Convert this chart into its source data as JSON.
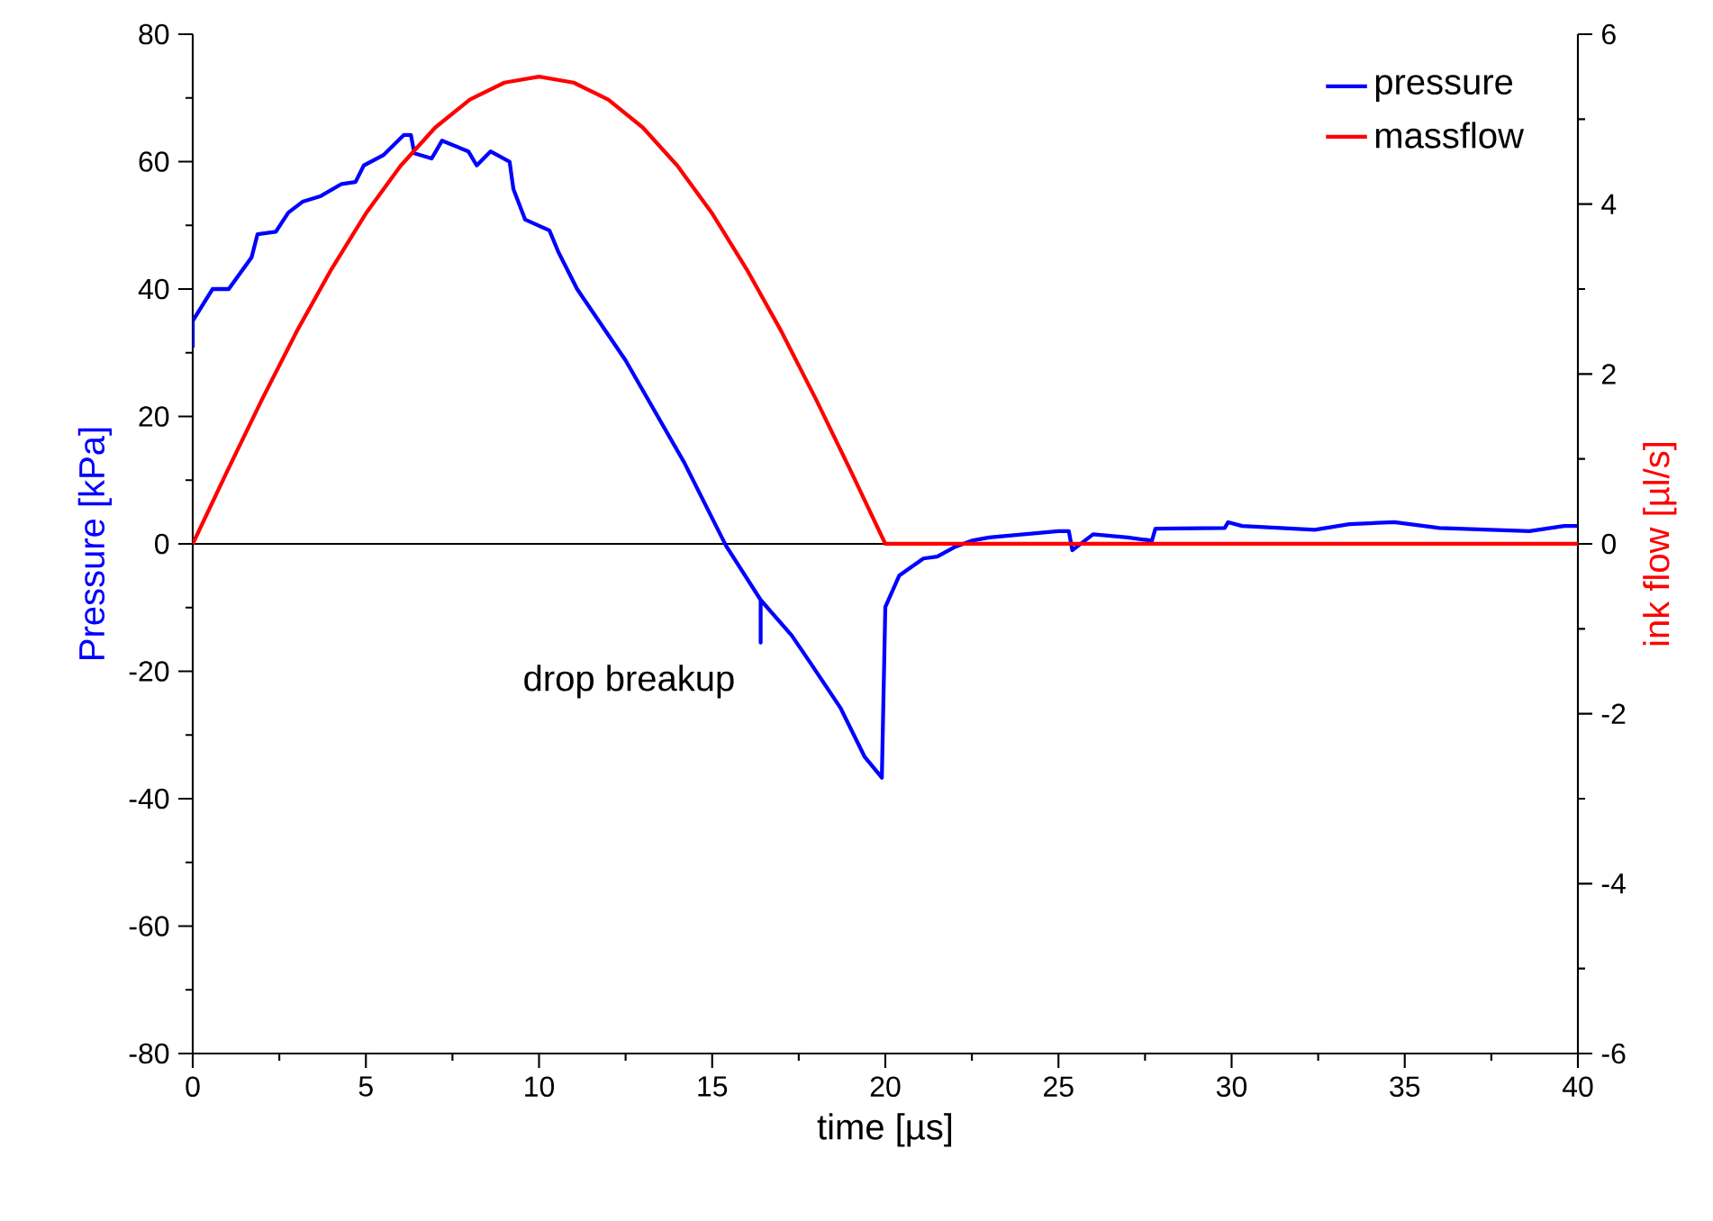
{
  "chart_data": {
    "type": "line",
    "xlabel": "time [µs]",
    "ylabel": "Pressure [kPa]",
    "y2label": "ink flow [µl/s]",
    "xlim": [
      0,
      40
    ],
    "xticks": [
      0,
      5,
      10,
      15,
      20,
      25,
      30,
      35,
      40
    ],
    "ylim": [
      -80,
      80
    ],
    "yticks": [
      -80,
      -60,
      -40,
      -20,
      0,
      20,
      40,
      60,
      80
    ],
    "y2lim": [
      -6,
      6
    ],
    "y2ticks": [
      -6,
      -4,
      -2,
      0,
      2,
      4,
      6
    ],
    "legend": "top right",
    "marker": "none",
    "line_style": "solid",
    "grid": false,
    "ref_lines": [
      {
        "axis": "y",
        "value": 0,
        "color": "#000000"
      }
    ],
    "annotations": [
      "drop breakup"
    ],
    "series": [
      {
        "name": "pressure",
        "color": "#0000ff",
        "x": [
          0,
          0,
          0.57,
          1.04,
          1.7,
          1.87,
          2.4,
          2.76,
          3.17,
          3.7,
          4.3,
          4.7,
          4.94,
          5.5,
          6.1,
          6.3,
          6.4,
          6.9,
          7.2,
          7.96,
          8.2,
          8.6,
          9.15,
          9.26,
          9.6,
          10.3,
          10.56,
          11.1,
          12.5,
          14.2,
          15.4,
          16.4,
          16.4,
          16.4,
          17.3,
          17.8,
          18.7,
          19.4,
          19.9,
          20,
          20.4,
          21.1,
          21.5,
          22,
          22.5,
          23,
          24,
          25,
          25.3,
          25.4,
          26,
          27,
          27.7,
          27.8,
          29.8,
          29.9,
          30.3,
          32.4,
          33.4,
          34.7,
          36,
          38.6,
          39.6,
          40
        ],
        "values": [
          30.8,
          35,
          40,
          40,
          45,
          48.6,
          49,
          52,
          53.7,
          54.6,
          56.5,
          56.8,
          59.4,
          61,
          64.2,
          64.2,
          61.3,
          60.5,
          63.3,
          61.6,
          59.4,
          61.6,
          60,
          55.7,
          50.9,
          49.2,
          45.8,
          40,
          28.8,
          12.7,
          -0.3,
          -8.8,
          -15.5,
          -8.8,
          -14.4,
          -18.4,
          -25.7,
          -33.4,
          -36.7,
          -9.9,
          -5,
          -2.3,
          -2,
          -0.5,
          0.5,
          1,
          1.5,
          2,
          2,
          -1,
          1.5,
          1,
          0.5,
          2.4,
          2.5,
          3.4,
          2.8,
          2.2,
          3.1,
          3.4,
          2.5,
          2,
          2.8,
          2.8
        ]
      },
      {
        "name": "massflow",
        "color": "#ff0000",
        "axis": "y2",
        "x": [
          0,
          1,
          2,
          3,
          4,
          5,
          6,
          7,
          8,
          9,
          10,
          11,
          12,
          13,
          14,
          15,
          16,
          17,
          18,
          19,
          20,
          25,
          30,
          35,
          40
        ],
        "values": [
          0,
          0.86,
          1.7,
          2.5,
          3.23,
          3.89,
          4.45,
          4.9,
          5.23,
          5.43,
          5.5,
          5.43,
          5.23,
          4.9,
          4.45,
          3.89,
          3.23,
          2.5,
          1.7,
          0.86,
          0,
          0,
          0,
          0,
          0
        ]
      }
    ]
  }
}
